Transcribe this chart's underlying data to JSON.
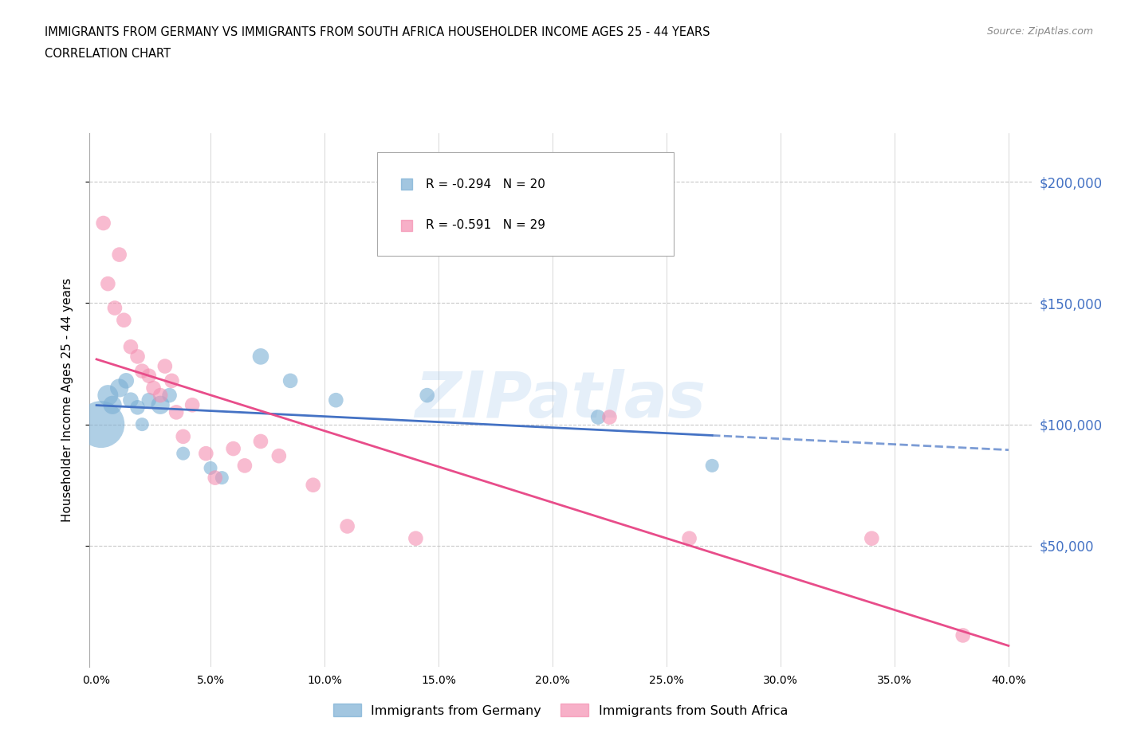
{
  "title_line1": "IMMIGRANTS FROM GERMANY VS IMMIGRANTS FROM SOUTH AFRICA HOUSEHOLDER INCOME AGES 25 - 44 YEARS",
  "title_line2": "CORRELATION CHART",
  "source_text": "Source: ZipAtlas.com",
  "ylabel": "Householder Income Ages 25 - 44 years",
  "xlabel_ticks": [
    "0.0%",
    "5.0%",
    "10.0%",
    "15.0%",
    "20.0%",
    "25.0%",
    "30.0%",
    "35.0%",
    "40.0%"
  ],
  "xlabel_tick_vals": [
    0.0,
    5.0,
    10.0,
    15.0,
    20.0,
    25.0,
    30.0,
    35.0,
    40.0
  ],
  "ytick_labels": [
    "$50,000",
    "$100,000",
    "$150,000",
    "$200,000"
  ],
  "ytick_vals": [
    50000,
    100000,
    150000,
    200000
  ],
  "ylim": [
    0,
    220000
  ],
  "xlim": [
    -0.3,
    41.0
  ],
  "germany_color": "#7bafd4",
  "south_africa_color": "#f48fb1",
  "germany_line_color": "#4472c4",
  "south_africa_line_color": "#e84d8a",
  "germany_R": -0.294,
  "germany_N": 20,
  "south_africa_R": -0.591,
  "south_africa_N": 29,
  "legend_label_germany": "Immigrants from Germany",
  "legend_label_south_africa": "Immigrants from South Africa",
  "germany_x": [
    0.2,
    0.5,
    0.7,
    1.0,
    1.3,
    1.5,
    1.8,
    2.0,
    2.3,
    2.8,
    3.2,
    3.8,
    5.0,
    5.5,
    7.2,
    8.5,
    10.5,
    14.5,
    22.0,
    27.0
  ],
  "germany_y": [
    100000,
    112000,
    108000,
    115000,
    118000,
    110000,
    107000,
    100000,
    110000,
    108000,
    112000,
    88000,
    82000,
    78000,
    128000,
    118000,
    110000,
    112000,
    103000,
    83000
  ],
  "germany_size": [
    1800,
    350,
    280,
    280,
    200,
    200,
    180,
    150,
    180,
    280,
    180,
    150,
    150,
    150,
    220,
    180,
    180,
    180,
    180,
    150
  ],
  "south_africa_x": [
    0.3,
    0.5,
    0.8,
    1.0,
    1.2,
    1.5,
    1.8,
    2.0,
    2.3,
    2.5,
    2.8,
    3.0,
    3.3,
    3.5,
    3.8,
    4.2,
    4.8,
    5.2,
    6.0,
    6.5,
    7.2,
    8.0,
    9.5,
    11.0,
    14.0,
    22.5,
    26.0,
    34.0,
    38.0
  ],
  "south_africa_y": [
    183000,
    158000,
    148000,
    170000,
    143000,
    132000,
    128000,
    122000,
    120000,
    115000,
    112000,
    124000,
    118000,
    105000,
    95000,
    108000,
    88000,
    78000,
    90000,
    83000,
    93000,
    87000,
    75000,
    58000,
    53000,
    103000,
    53000,
    53000,
    13000
  ],
  "south_africa_size": [
    180,
    180,
    180,
    180,
    180,
    180,
    180,
    180,
    180,
    180,
    180,
    180,
    180,
    180,
    180,
    180,
    180,
    180,
    180,
    180,
    180,
    180,
    180,
    180,
    180,
    180,
    180,
    180,
    180
  ],
  "watermark_text": "ZIPatlas",
  "background_color": "#ffffff",
  "grid_color": "#c8c8c8"
}
